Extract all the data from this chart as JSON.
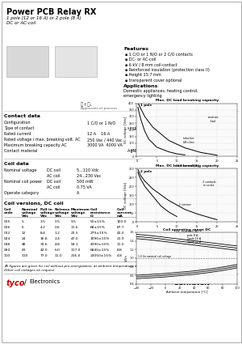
{
  "title": "Power PCB Relay RX",
  "subtitle1": "1 pole (12 or 16 A) or 2 pole (8 A)",
  "subtitle2": "DC or AC-coil",
  "bg_color": "#ffffff",
  "features_title": "Features",
  "features": [
    "1 C/O or 1 N/O or 2 C/O contacts",
    "DC- or AC-coil",
    "6 kV / 8 mm coil-contact",
    "Reinforced insulation (protection class II)",
    "Height 15.7 mm",
    "transparent cover optional"
  ],
  "applications_title": "Applications",
  "applications": "Domestic appliances, heating control, emergency lighting",
  "contact_data_title": "Contact data",
  "coil_data_title": "Coil data",
  "coil_versions_title": "Coil versions, DC coil",
  "coil_table_rows": [
    [
      "005",
      "5",
      "3.5",
      "0.5",
      "9.5",
      "50±15%",
      "100.0"
    ],
    [
      "006",
      "6",
      "4.2",
      "0.6",
      "11.6",
      "68±15%",
      "87.7"
    ],
    [
      "012",
      "12",
      "8.4",
      "1.2",
      "23.5",
      "279±15%",
      "43.0"
    ],
    [
      "024",
      "24",
      "16.8",
      "2.4",
      "47.0",
      "1090±15%",
      "21.9"
    ],
    [
      "048",
      "48",
      "33.6",
      "4.8",
      "94.1",
      "4390±15%",
      "11.0"
    ],
    [
      "060",
      "60",
      "42.0",
      "6.0",
      "117.0",
      "6840±15%",
      "8.8"
    ],
    [
      "110",
      "110",
      "77.0",
      "11.0",
      "216.0",
      "23050±15%",
      "4.8"
    ]
  ],
  "footnote1": "All figures are given for coil without pre-energization, at ambient temperature +20°C",
  "footnote2": "Other coil voltages on request",
  "graph1_title": "Max. DC load breaking capacity",
  "graph2_title": "Max. DC load breaking capacity",
  "graph3_title": "Coil operating range DC"
}
